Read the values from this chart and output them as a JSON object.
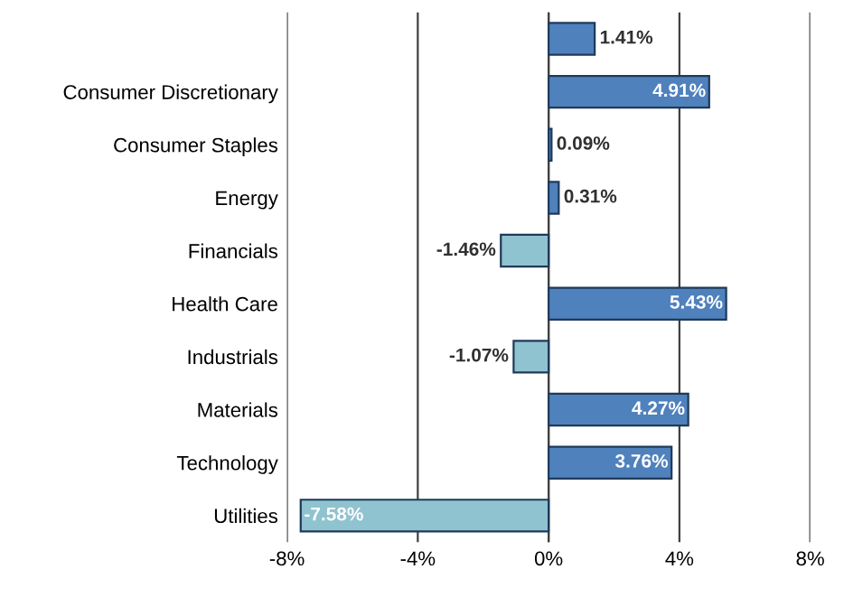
{
  "chart_data": {
    "type": "bar",
    "orientation": "horizontal",
    "categories": [
      null,
      "Consumer Discretionary",
      "Consumer Staples",
      "Energy",
      "Financials",
      "Health Care",
      "Industrials",
      "Materials",
      "Technology",
      "Utilities"
    ],
    "values": [
      1.41,
      4.91,
      0.09,
      0.31,
      -1.46,
      5.43,
      -1.07,
      4.27,
      3.76,
      -7.58
    ],
    "colors": [
      "#4f81bd",
      "#4f81bd",
      "#4f81bd",
      "#4f81bd",
      "#8fc3cf",
      "#4f81bd",
      "#8fc3cf",
      "#4f81bd",
      "#4f81bd",
      "#8fc3cf"
    ],
    "value_labels": [
      "1.41%",
      "4.91%",
      "0.09%",
      "0.31%",
      "-1.46%",
      "5.43%",
      "-1.07%",
      "4.27%",
      "3.76%",
      "-7.58%"
    ],
    "xlim": [
      -8,
      8
    ],
    "xticks": [
      {
        "value": -8,
        "label": "-8%"
      },
      {
        "value": -4,
        "label": "-4%"
      },
      {
        "value": 0,
        "label": "0%"
      },
      {
        "value": 4,
        "label": "4%"
      },
      {
        "value": 8,
        "label": "8%"
      }
    ],
    "grid": "x"
  }
}
